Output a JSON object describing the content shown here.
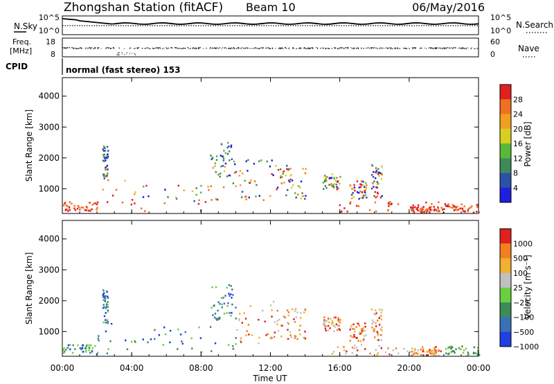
{
  "header": {
    "station": "Zhongshan Station (fitACF)",
    "beam": "Beam 10",
    "date": "06/May/2016"
  },
  "panels": {
    "nsky": {
      "left_label": "N.Sky",
      "right_label": "N.Search",
      "left_ticks": [
        "10^5",
        "10^0"
      ],
      "right_ticks": [
        "10^5",
        "10^0"
      ]
    },
    "freq": {
      "left_label_1": "Freq.",
      "left_label_2": "[MHz]",
      "right_label": "Nave",
      "left_ticks": [
        "18",
        "8"
      ],
      "right_ticks": [
        "60",
        "0"
      ]
    },
    "cpid": {
      "label": "CPID",
      "text": "normal (fast stereo) 153"
    }
  },
  "colors": {
    "power": [
      "#1f1fe0",
      "#2c52a8",
      "#3f8a5a",
      "#58b83a",
      "#d8d020",
      "#f0a020",
      "#f07020",
      "#e02020"
    ],
    "velocity": [
      "#2040e0",
      "#3a70b8",
      "#3f8a5a",
      "#6bd040",
      "#c0c0c0",
      "#f0b030",
      "#f08020",
      "#e02020"
    ]
  },
  "chart_data": [
    {
      "type": "heatmap",
      "name": "power",
      "ylabel": "Slant Range [km]",
      "yticks": [
        1000,
        2000,
        3000,
        4000
      ],
      "ylim": [
        200,
        4600
      ],
      "xticks": [
        "00:00",
        "04:00",
        "08:00",
        "12:00",
        "16:00",
        "20:00",
        "00:00"
      ],
      "xlim": [
        0,
        24
      ],
      "colorbar": {
        "label": "Power [dB]",
        "ticks": [
          "28",
          "24",
          "20",
          "16",
          "12",
          "8",
          "4"
        ]
      }
    },
    {
      "type": "heatmap",
      "name": "velocity",
      "ylabel": "Slant Range [km]",
      "yticks": [
        1000,
        2000,
        3000,
        4000
      ],
      "ylim": [
        200,
        4600
      ],
      "xticks": [
        "00:00",
        "04:00",
        "08:00",
        "12:00",
        "16:00",
        "20:00",
        "00:00"
      ],
      "xlim": [
        0,
        24
      ],
      "xlabel": "Time UT",
      "colorbar": {
        "label": "Velocity [m s⁻¹]",
        "ticks": [
          "1000",
          "500",
          "100",
          "25",
          "−25",
          "−100",
          "−500",
          "−1000"
        ]
      }
    }
  ]
}
